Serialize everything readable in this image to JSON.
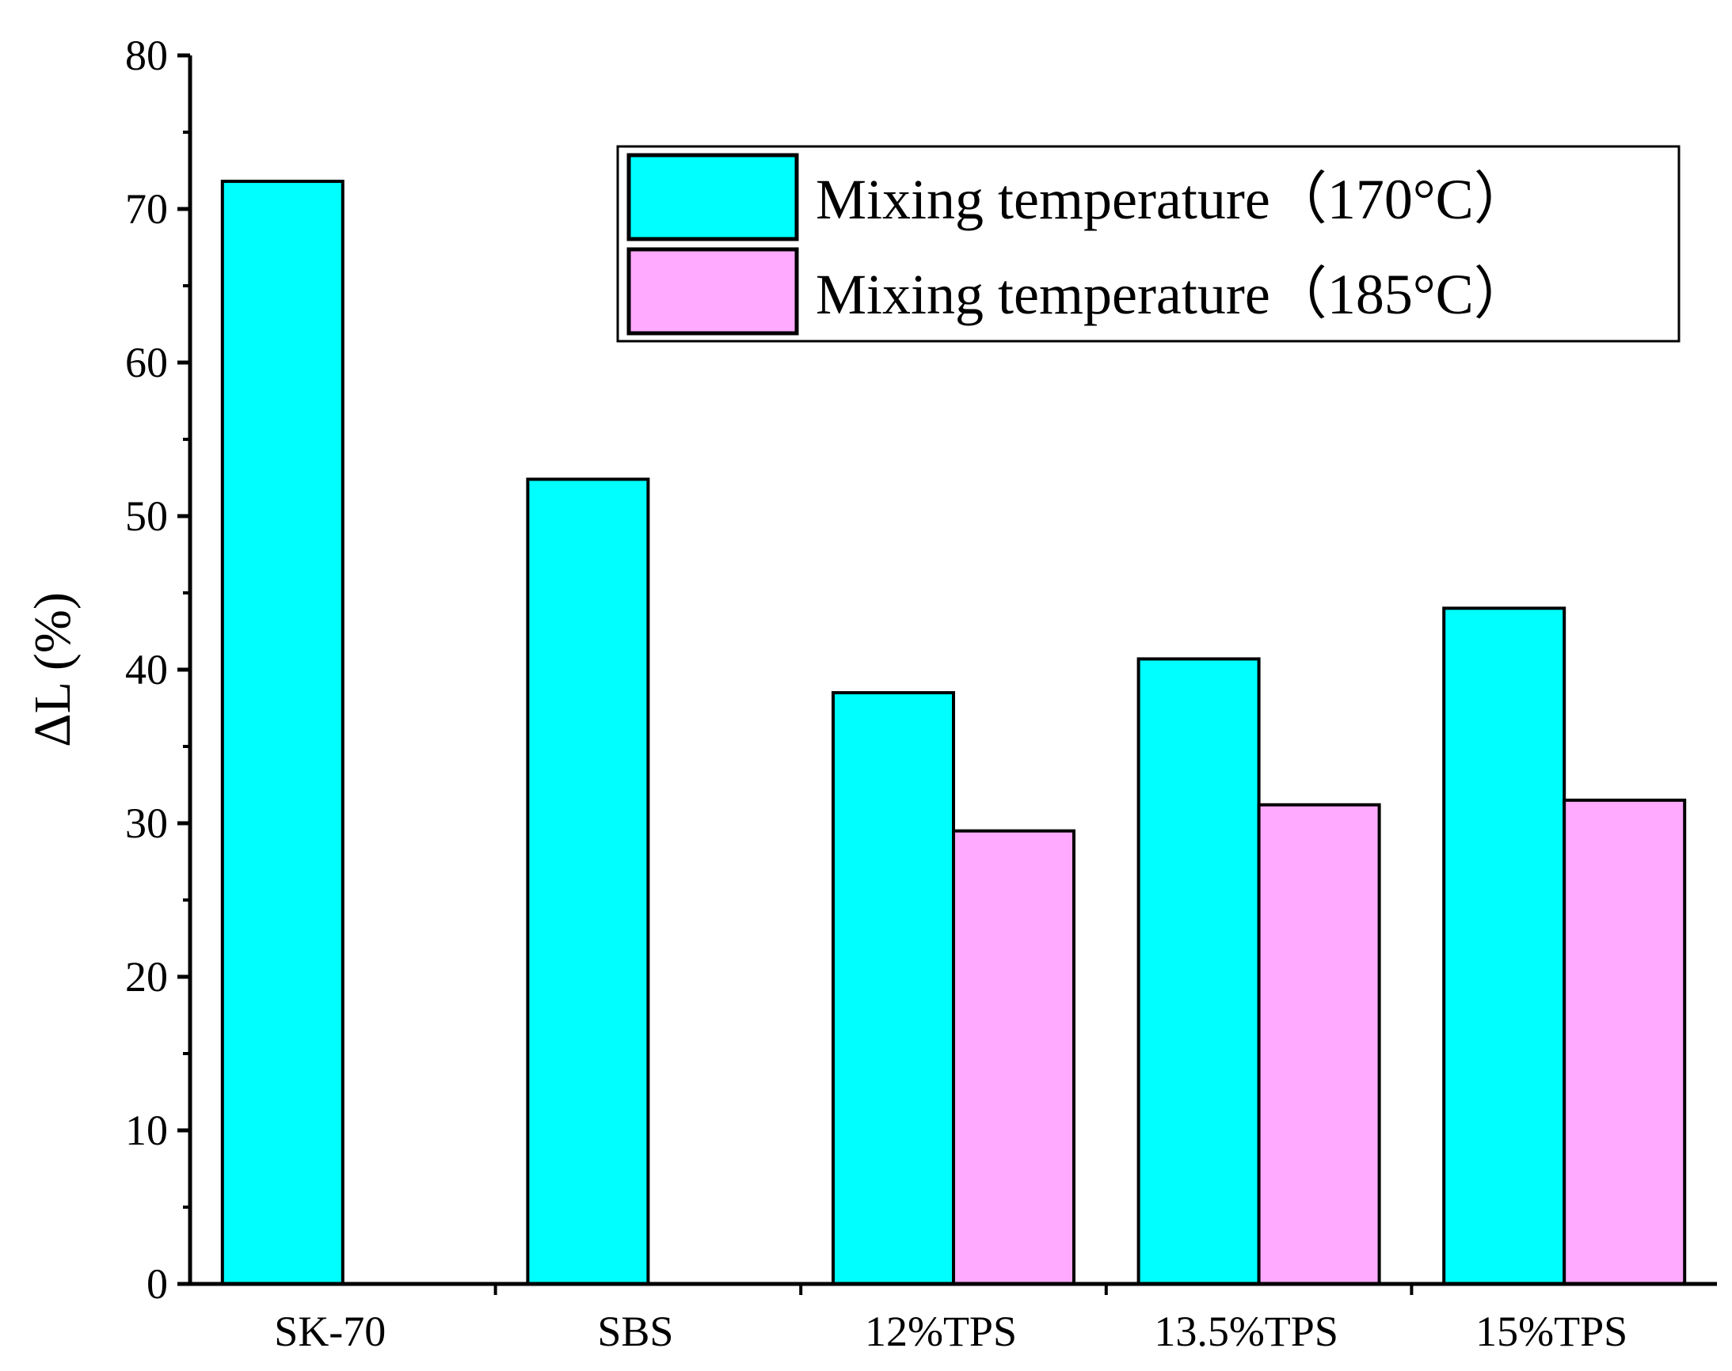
{
  "chart_data": {
    "type": "bar",
    "title": "",
    "xlabel": "",
    "ylabel": "ΔL (%)",
    "ylim": [
      0,
      80
    ],
    "yticks": [
      "0",
      "10",
      "20",
      "30",
      "40",
      "50",
      "60",
      "70",
      "80"
    ],
    "categories": [
      "SK-70",
      "SBS",
      "12%TPS",
      "13.5%TPS",
      "15%TPS"
    ],
    "series": [
      {
        "name": "Mixing temperature（170°C）",
        "color": "#00ffff",
        "values": [
          71.8,
          52.4,
          38.5,
          40.7,
          44.0
        ]
      },
      {
        "name": "Mixing temperature（185°C）",
        "color": "#ffaaff",
        "values": [
          null,
          null,
          29.5,
          31.2,
          31.5
        ]
      }
    ],
    "grid": false,
    "legend_position": "top-right"
  }
}
